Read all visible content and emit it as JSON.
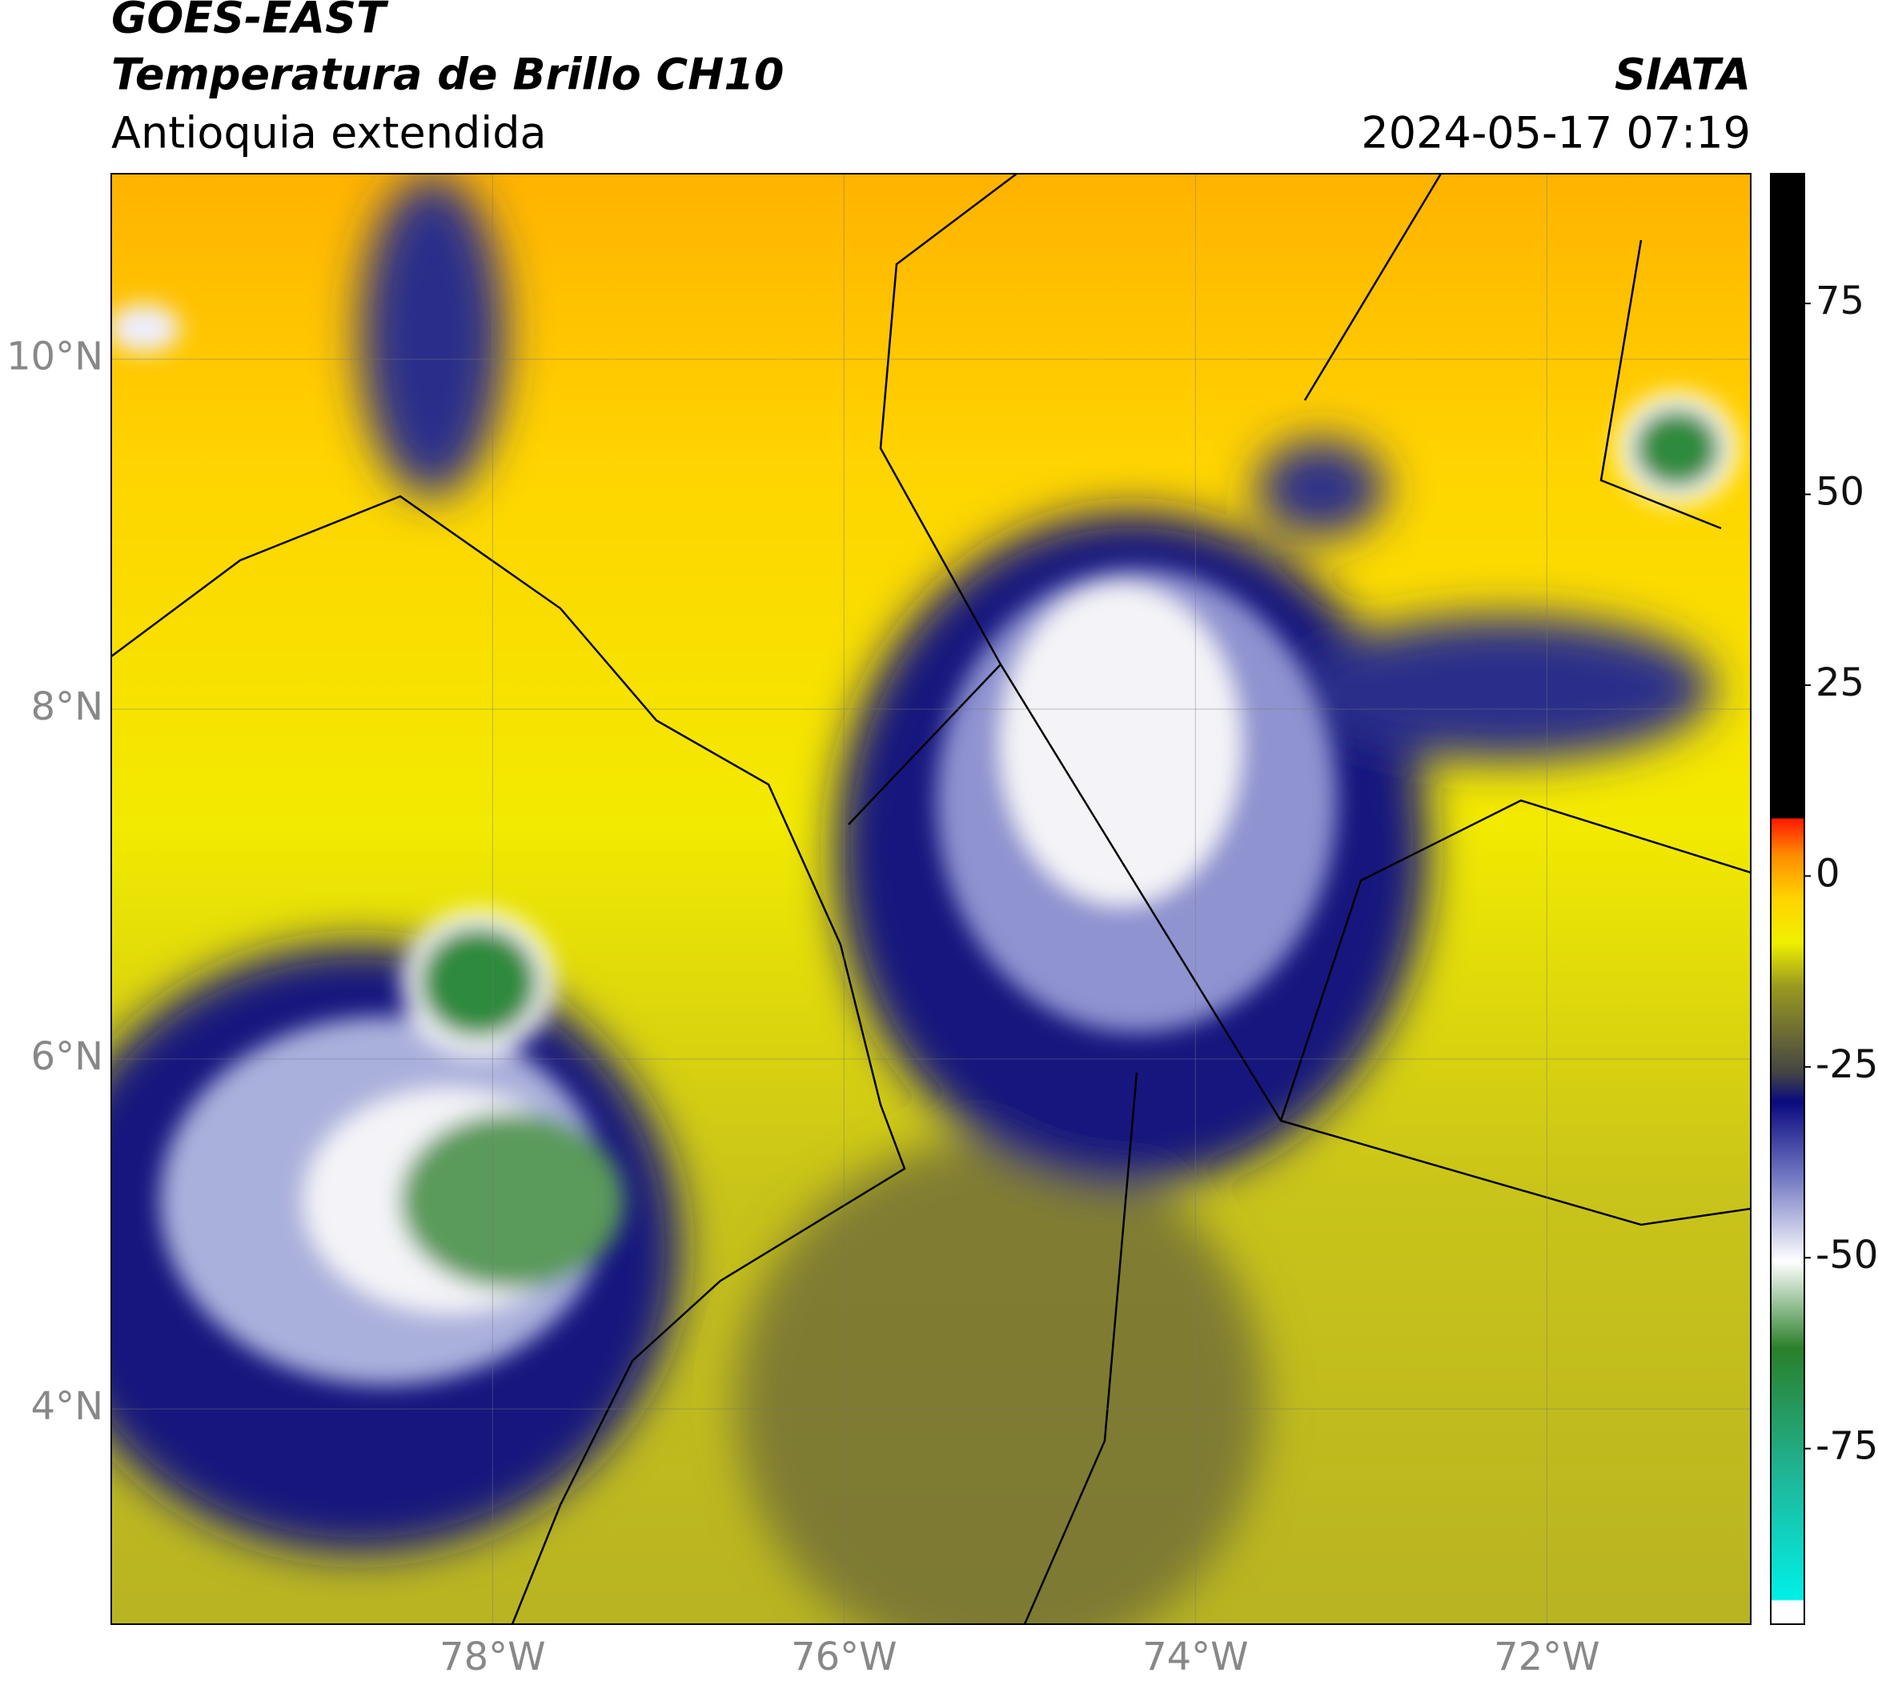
{
  "header": {
    "satellite": "GOES-EAST",
    "product": "Temperatura de Brillo CH10",
    "region": "Antioquia extendida",
    "source": "SIATA",
    "datetime": "2024-05-17 07:19"
  },
  "map": {
    "lat_lim": [
      2.77,
      11.06
    ],
    "lon_lim": [
      -80.17,
      -70.84
    ],
    "grid": true,
    "lat_ticks": [
      {
        "value": 4,
        "label": "4°N"
      },
      {
        "value": 6,
        "label": "6°N"
      },
      {
        "value": 8,
        "label": "8°N"
      },
      {
        "value": 10,
        "label": "10°N"
      }
    ],
    "lon_ticks": [
      {
        "value": -78,
        "label": "78°W"
      },
      {
        "value": -76,
        "label": "76°W"
      },
      {
        "value": -74,
        "label": "74°W"
      },
      {
        "value": -72,
        "label": "72°W"
      }
    ]
  },
  "colorbar": {
    "lim": [
      -98,
      92
    ],
    "ticks": [
      -75,
      -50,
      -25,
      0,
      25,
      50,
      75
    ]
  }
}
